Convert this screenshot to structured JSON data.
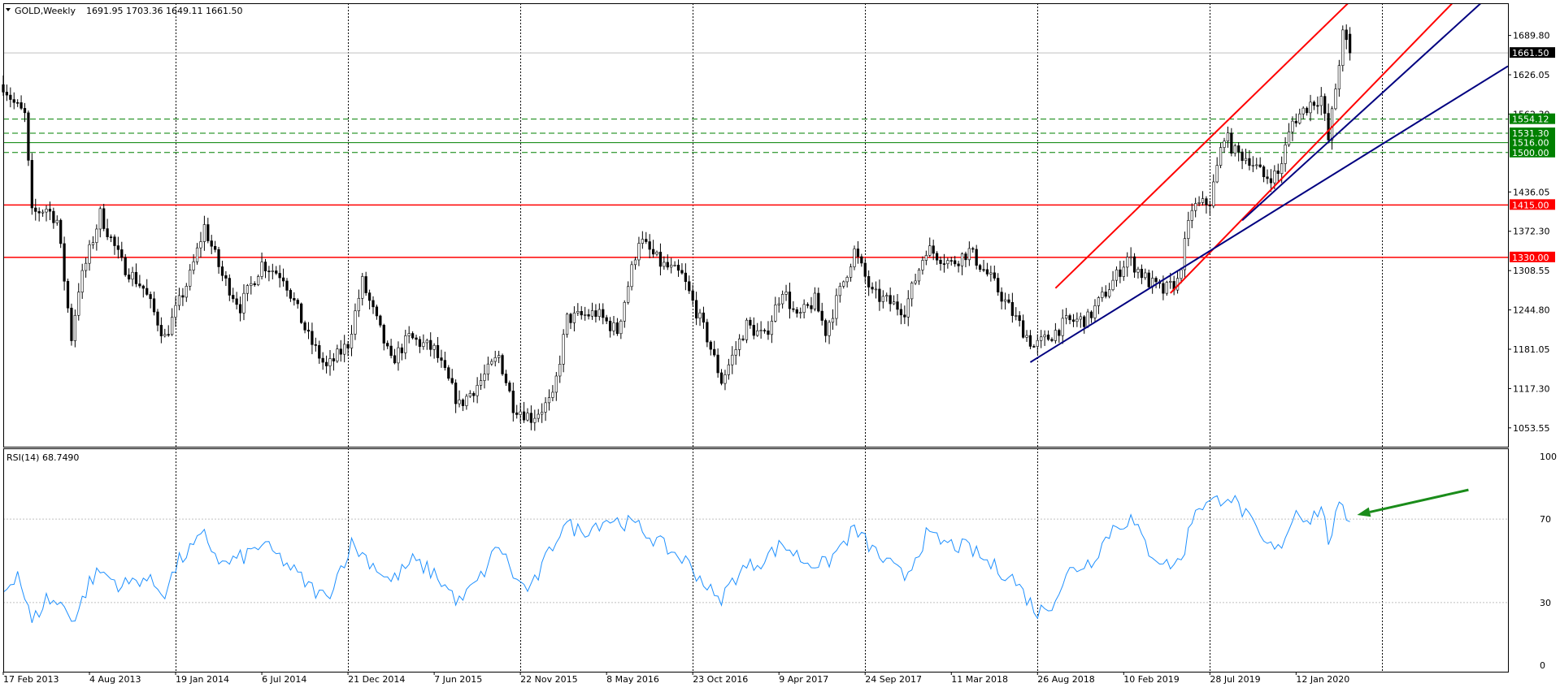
{
  "header": {
    "symbol_timeframe": "GOLD,Weekly",
    "ohlc": "1691.95 1703.36 1649.11 1661.50"
  },
  "rsi_header": {
    "label": "RSI(14) 68.7490"
  },
  "chart_data": [
    {
      "type": "candlestick",
      "title": "GOLD,Weekly",
      "last_price": 1661.5,
      "current_bar": {
        "open": 1691.95,
        "high": 1703.36,
        "low": 1649.11,
        "close": 1661.5
      },
      "y_axis": {
        "ylim": [
          1023,
          1742
        ],
        "ticks": [
          "1689.80",
          "1626.05",
          "1562.30",
          "1436.05",
          "1372.30",
          "1308.55",
          "1244.80",
          "1181.05",
          "1117.30",
          "1053.55"
        ]
      },
      "x_axis": {
        "start": "2013-02-17",
        "end": "2021-02-28",
        "tick_labels": [
          "17 Feb 2013",
          "4 Aug 2013",
          "19 Jan 2014",
          "6 Jul 2014",
          "21 Dec 2014",
          "7 Jun 2015",
          "22 Nov 2015",
          "8 May 2016",
          "23 Oct 2016",
          "9 Apr 2017",
          "24 Sep 2017",
          "11 Mar 2018",
          "26 Aug 2018",
          "10 Feb 2019",
          "28 Jul 2019",
          "12 Jan 2020"
        ],
        "tick_dates": [
          "2013-02-17",
          "2013-08-04",
          "2014-01-19",
          "2014-07-06",
          "2014-12-21",
          "2015-06-07",
          "2015-11-22",
          "2016-05-08",
          "2016-10-23",
          "2017-04-09",
          "2017-09-24",
          "2018-03-11",
          "2018-08-26",
          "2019-02-10",
          "2019-07-28",
          "2020-01-12"
        ],
        "grid_dates": [
          "2014-01-19",
          "2014-12-21",
          "2015-11-22",
          "2016-10-23",
          "2017-09-24",
          "2018-08-26",
          "2019-07-28",
          "2020-06-28"
        ]
      },
      "price_path": [
        [
          "2013-02-17",
          1610
        ],
        [
          "2013-03-10",
          1580
        ],
        [
          "2013-03-31",
          1560
        ],
        [
          "2013-04-14",
          1400
        ],
        [
          "2013-05-12",
          1410
        ],
        [
          "2013-06-02",
          1390
        ],
        [
          "2013-06-30",
          1200
        ],
        [
          "2013-07-14",
          1280
        ],
        [
          "2013-08-25",
          1400
        ],
        [
          "2013-10-06",
          1320
        ],
        [
          "2013-11-17",
          1280
        ],
        [
          "2013-12-29",
          1200
        ],
        [
          "2014-02-16",
          1300
        ],
        [
          "2014-03-16",
          1380
        ],
        [
          "2014-04-20",
          1300
        ],
        [
          "2014-05-25",
          1250
        ],
        [
          "2014-07-06",
          1320
        ],
        [
          "2014-08-17",
          1300
        ],
        [
          "2014-10-05",
          1200
        ],
        [
          "2014-11-09",
          1150
        ],
        [
          "2014-12-21",
          1190
        ],
        [
          "2015-01-18",
          1290
        ],
        [
          "2015-02-22",
          1210
        ],
        [
          "2015-03-15",
          1160
        ],
        [
          "2015-04-19",
          1200
        ],
        [
          "2015-06-07",
          1180
        ],
        [
          "2015-07-26",
          1090
        ],
        [
          "2015-09-06",
          1130
        ],
        [
          "2015-10-11",
          1170
        ],
        [
          "2015-11-08",
          1090
        ],
        [
          "2015-12-13",
          1070
        ],
        [
          "2016-01-24",
          1100
        ],
        [
          "2016-02-21",
          1230
        ],
        [
          "2016-04-17",
          1240
        ],
        [
          "2016-05-29",
          1210
        ],
        [
          "2016-07-10",
          1360
        ],
        [
          "2016-08-21",
          1320
        ],
        [
          "2016-10-02",
          1300
        ],
        [
          "2016-11-20",
          1200
        ],
        [
          "2016-12-18",
          1130
        ],
        [
          "2017-02-05",
          1220
        ],
        [
          "2017-03-12",
          1200
        ],
        [
          "2017-04-16",
          1280
        ],
        [
          "2017-05-14",
          1230
        ],
        [
          "2017-06-18",
          1260
        ],
        [
          "2017-07-09",
          1210
        ],
        [
          "2017-09-03",
          1340
        ],
        [
          "2017-10-08",
          1270
        ],
        [
          "2017-12-10",
          1245
        ],
        [
          "2018-01-21",
          1345
        ],
        [
          "2018-03-11",
          1320
        ],
        [
          "2018-04-15",
          1340
        ],
        [
          "2018-05-27",
          1295
        ],
        [
          "2018-07-15",
          1230
        ],
        [
          "2018-08-19",
          1185
        ],
        [
          "2018-09-16",
          1200
        ],
        [
          "2018-10-21",
          1225
        ],
        [
          "2018-12-02",
          1230
        ],
        [
          "2019-01-27",
          1300
        ],
        [
          "2019-02-17",
          1330
        ],
        [
          "2019-03-31",
          1290
        ],
        [
          "2019-04-28",
          1275
        ],
        [
          "2019-05-26",
          1290
        ],
        [
          "2019-06-23",
          1410
        ],
        [
          "2019-07-28",
          1420
        ],
        [
          "2019-08-25",
          1530
        ],
        [
          "2019-09-15",
          1500
        ],
        [
          "2019-10-13",
          1490
        ],
        [
          "2019-11-10",
          1460
        ],
        [
          "2019-12-08",
          1465
        ],
        [
          "2020-01-05",
          1550
        ],
        [
          "2020-02-09",
          1580
        ],
        [
          "2020-03-01",
          1590
        ],
        [
          "2020-03-15",
          1520
        ],
        [
          "2020-04-12",
          1690
        ],
        [
          "2020-04-26",
          1661.5
        ]
      ],
      "horizontal_levels": [
        {
          "value": 1554.12,
          "label": "1554.12",
          "style": "green-dashed"
        },
        {
          "value": 1531.3,
          "label": "1531.30",
          "style": "green-dashed"
        },
        {
          "value": 1516.0,
          "label": "1516.00",
          "style": "green-solid"
        },
        {
          "value": 1500.0,
          "label": "1500.00",
          "style": "green-dashed"
        },
        {
          "value": 1415.0,
          "label": "1415.00",
          "style": "red"
        },
        {
          "value": 1330.0,
          "label": "1330.00",
          "style": "red"
        }
      ],
      "trendlines": [
        {
          "color": "#ff0000",
          "from": [
            "2018-09-30",
            1280
          ],
          "to": [
            "2020-04-26",
            1745
          ]
        },
        {
          "color": "#ff0000",
          "from": [
            "2019-05-12",
            1272
          ],
          "to": [
            "2020-11-15",
            1745
          ]
        },
        {
          "color": "#000080",
          "from": [
            "2019-09-29",
            1390
          ],
          "to": [
            "2021-01-10",
            1745
          ]
        },
        {
          "color": "#000080",
          "from": [
            "2018-08-12",
            1160
          ],
          "to": [
            "2021-02-28",
            1640
          ]
        }
      ]
    },
    {
      "type": "line",
      "title": "RSI(14) 68.7490",
      "ylim": [
        0,
        100
      ],
      "y_ticks": [
        "100",
        "70",
        "30",
        "0"
      ],
      "levels": [
        70,
        30
      ],
      "color": "#1e90ff",
      "rsi_path": [
        [
          "2013-02-17",
          35
        ],
        [
          "2013-03-17",
          45
        ],
        [
          "2013-04-14",
          20
        ],
        [
          "2013-05-12",
          32
        ],
        [
          "2013-06-16",
          28
        ],
        [
          "2013-07-07",
          22
        ],
        [
          "2013-08-04",
          40
        ],
        [
          "2013-08-25",
          45
        ],
        [
          "2013-10-06",
          38
        ],
        [
          "2013-11-17",
          42
        ],
        [
          "2013-12-29",
          35
        ],
        [
          "2014-01-26",
          50
        ],
        [
          "2014-03-16",
          62
        ],
        [
          "2014-04-20",
          48
        ],
        [
          "2014-06-01",
          52
        ],
        [
          "2014-07-06",
          58
        ],
        [
          "2014-08-17",
          50
        ],
        [
          "2014-10-05",
          38
        ],
        [
          "2014-11-09",
          32
        ],
        [
          "2014-12-28",
          58
        ],
        [
          "2015-02-01",
          50
        ],
        [
          "2015-03-15",
          40
        ],
        [
          "2015-04-26",
          50
        ],
        [
          "2015-06-07",
          44
        ],
        [
          "2015-07-26",
          30
        ],
        [
          "2015-09-06",
          42
        ],
        [
          "2015-10-11",
          58
        ],
        [
          "2015-11-15",
          40
        ],
        [
          "2015-12-13",
          36
        ],
        [
          "2016-02-14",
          68
        ],
        [
          "2016-03-20",
          64
        ],
        [
          "2016-05-08",
          70
        ],
        [
          "2016-06-19",
          68
        ],
        [
          "2016-07-10",
          66
        ],
        [
          "2016-08-21",
          58
        ],
        [
          "2016-10-09",
          50
        ],
        [
          "2016-11-20",
          38
        ],
        [
          "2016-12-11",
          30
        ],
        [
          "2017-01-22",
          45
        ],
        [
          "2017-03-05",
          50
        ],
        [
          "2017-04-16",
          58
        ],
        [
          "2017-05-28",
          50
        ],
        [
          "2017-07-09",
          48
        ],
        [
          "2017-09-03",
          65
        ],
        [
          "2017-10-22",
          52
        ],
        [
          "2017-12-10",
          42
        ],
        [
          "2018-01-21",
          62
        ],
        [
          "2018-03-04",
          58
        ],
        [
          "2018-04-15",
          56
        ],
        [
          "2018-05-27",
          48
        ],
        [
          "2018-07-08",
          42
        ],
        [
          "2018-08-12",
          30
        ],
        [
          "2018-08-26",
          25
        ],
        [
          "2018-09-23",
          30
        ],
        [
          "2018-10-28",
          45
        ],
        [
          "2018-12-09",
          50
        ],
        [
          "2019-01-20",
          66
        ],
        [
          "2019-02-24",
          70
        ],
        [
          "2019-03-31",
          55
        ],
        [
          "2019-05-05",
          48
        ],
        [
          "2019-06-02",
          50
        ],
        [
          "2019-06-30",
          76
        ],
        [
          "2019-08-04",
          78
        ],
        [
          "2019-09-01",
          82
        ],
        [
          "2019-10-06",
          72
        ],
        [
          "2019-11-10",
          58
        ],
        [
          "2019-12-08",
          55
        ],
        [
          "2020-01-12",
          74
        ],
        [
          "2020-02-09",
          70
        ],
        [
          "2020-03-01",
          76
        ],
        [
          "2020-03-15",
          60
        ],
        [
          "2020-04-05",
          75
        ],
        [
          "2020-04-26",
          68.749
        ]
      ],
      "annotation_arrow": {
        "color": "#1a8c1a",
        "from": [
          "2020-12-13",
          84
        ],
        "to": [
          "2020-05-10",
          72
        ]
      }
    }
  ],
  "colors": {
    "background": "#ffffff",
    "grid": "#000000",
    "frame": "#000000",
    "candle": "#000000",
    "resistance": "#ff0000",
    "support_zone": "#008000",
    "channel": "#000080",
    "last_price_line": "#c0c0c0"
  }
}
